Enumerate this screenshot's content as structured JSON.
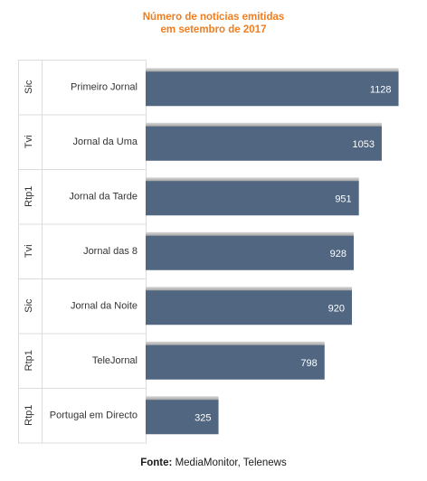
{
  "chart_data": {
    "type": "bar",
    "orientation": "horizontal",
    "title_line1": "Número de notícias emitidas",
    "title_line2": "em setembro de 2017",
    "groups": [
      "Sic",
      "Tvi",
      "Rtp1",
      "Tvi",
      "Sic",
      "Rtp1",
      "Rtp1"
    ],
    "categories": [
      "Primeiro Jornal",
      "Jornal da Uma",
      "Jornal da Tarde",
      "Jornal das 8",
      "Jornal da Noite",
      "TeleJornal",
      "Portugal em Directo"
    ],
    "values": [
      1128,
      1053,
      951,
      928,
      920,
      798,
      325
    ],
    "xlim": [
      0,
      1150
    ],
    "bar_color": "#516680",
    "source_label": "Fonte:",
    "source_text": "MediaMonitor, Telenews"
  }
}
